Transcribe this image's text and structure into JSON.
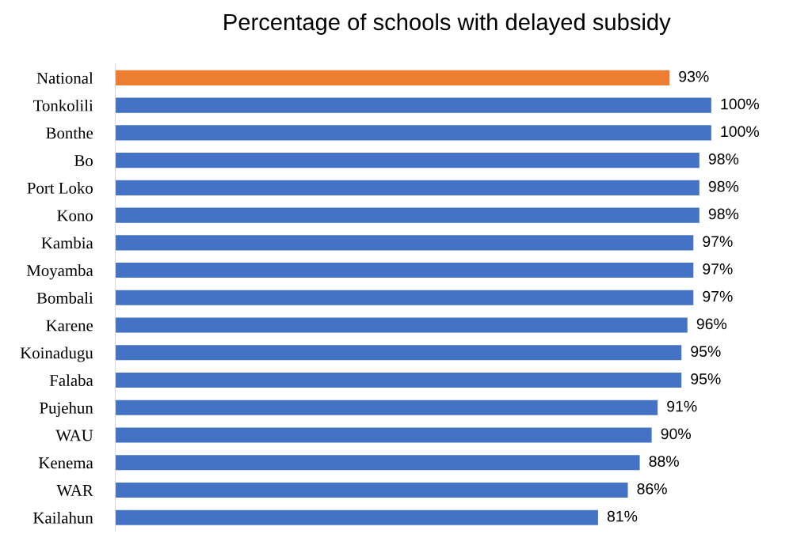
{
  "chart_data": {
    "type": "bar",
    "orientation": "horizontal",
    "title": "Percentage of schools with delayed subsidy",
    "categories": [
      "National",
      "Tonkolili",
      "Bonthe",
      "Bo",
      "Port Loko",
      "Kono",
      "Kambia",
      "Moyamba",
      "Bombali",
      "Karene",
      "Koinadugu",
      "Falaba",
      "Pujehun",
      "WAU",
      "Kenema",
      "WAR",
      "Kailahun"
    ],
    "values": [
      93,
      100,
      100,
      98,
      98,
      98,
      97,
      97,
      97,
      96,
      95,
      95,
      91,
      90,
      88,
      86,
      81
    ],
    "colors": [
      "#ed7d31",
      "#4472c4",
      "#4472c4",
      "#4472c4",
      "#4472c4",
      "#4472c4",
      "#4472c4",
      "#4472c4",
      "#4472c4",
      "#4472c4",
      "#4472c4",
      "#4472c4",
      "#4472c4",
      "#4472c4",
      "#4472c4",
      "#4472c4",
      "#4472c4"
    ],
    "value_labels": [
      "93%",
      "100%",
      "100%",
      "98%",
      "98%",
      "98%",
      "97%",
      "97%",
      "97%",
      "96%",
      "95%",
      "95%",
      "91%",
      "90%",
      "88%",
      "86%",
      "81%"
    ],
    "grid": false,
    "legend": false
  }
}
